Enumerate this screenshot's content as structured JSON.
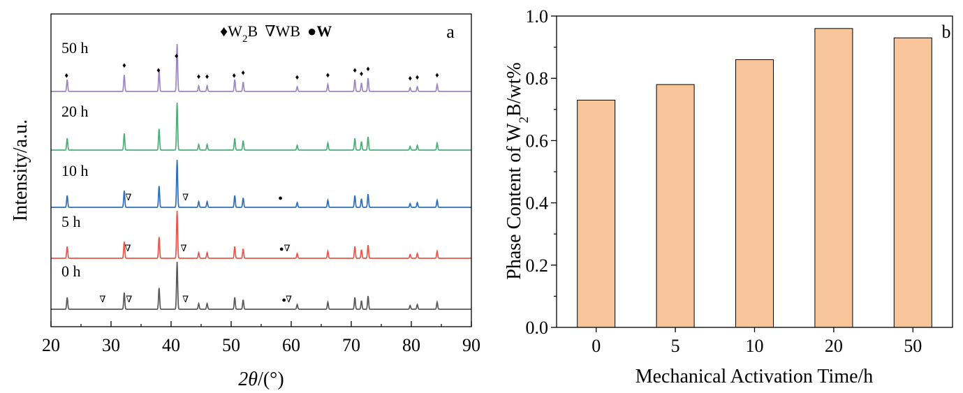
{
  "chart_data": [
    {
      "type": "line",
      "panel_label": "a",
      "xlabel_symbol": "2θ",
      "xlabel_unit": "/(°)",
      "ylabel": "Intensity/a.u.",
      "xlim": [
        20,
        90
      ],
      "xticks": [
        "20",
        "30",
        "40",
        "50",
        "60",
        "70",
        "80",
        "90"
      ],
      "legend": {
        "w2b_symbol": "♦",
        "w2b_label": "W",
        "w2b_sub": "2",
        "w2b_suffix": "B",
        "wb_symbol": "∇",
        "wb_label": "WB",
        "w_symbol": "●",
        "w_label": "W"
      },
      "series": [
        {
          "name": "0 h",
          "color": "#595959",
          "peaks": [
            [
              22.7,
              0.25
            ],
            [
              32.2,
              0.35
            ],
            [
              38.0,
              0.45
            ],
            [
              41.0,
              1.0
            ],
            [
              44.6,
              0.12
            ],
            [
              46.0,
              0.12
            ],
            [
              50.6,
              0.25
            ],
            [
              52.0,
              0.2
            ],
            [
              61.0,
              0.1
            ],
            [
              66.1,
              0.15
            ],
            [
              70.6,
              0.25
            ],
            [
              71.7,
              0.18
            ],
            [
              72.8,
              0.28
            ],
            [
              79.8,
              0.08
            ],
            [
              81.0,
              0.1
            ],
            [
              84.3,
              0.15
            ]
          ],
          "markers": [
            {
              "x": 28.6,
              "symbol": "∇"
            },
            {
              "x": 33.0,
              "symbol": "∇"
            },
            {
              "x": 42.4,
              "symbol": "∇"
            },
            {
              "x": 58.8,
              "symbol": "●"
            },
            {
              "x": 59.6,
              "symbol": "∇"
            }
          ]
        },
        {
          "name": "5 h",
          "color": "#e8574a",
          "peaks": [
            [
              22.7,
              0.25
            ],
            [
              32.2,
              0.35
            ],
            [
              38.0,
              0.45
            ],
            [
              41.0,
              1.0
            ],
            [
              44.6,
              0.12
            ],
            [
              46.0,
              0.12
            ],
            [
              50.6,
              0.25
            ],
            [
              52.0,
              0.2
            ],
            [
              61.0,
              0.1
            ],
            [
              66.1,
              0.15
            ],
            [
              70.6,
              0.25
            ],
            [
              71.7,
              0.18
            ],
            [
              72.8,
              0.28
            ],
            [
              79.8,
              0.08
            ],
            [
              81.0,
              0.1
            ],
            [
              84.3,
              0.15
            ]
          ],
          "markers": [
            {
              "x": 32.8,
              "symbol": "∇"
            },
            {
              "x": 42.1,
              "symbol": "∇"
            },
            {
              "x": 58.4,
              "symbol": "●"
            },
            {
              "x": 59.3,
              "symbol": "∇"
            }
          ]
        },
        {
          "name": "10 h",
          "color": "#2e6fba",
          "peaks": [
            [
              22.7,
              0.25
            ],
            [
              32.2,
              0.35
            ],
            [
              38.0,
              0.45
            ],
            [
              41.0,
              1.0
            ],
            [
              44.6,
              0.12
            ],
            [
              46.0,
              0.12
            ],
            [
              50.6,
              0.25
            ],
            [
              52.0,
              0.2
            ],
            [
              61.0,
              0.1
            ],
            [
              66.1,
              0.15
            ],
            [
              70.6,
              0.25
            ],
            [
              71.7,
              0.18
            ],
            [
              72.8,
              0.28
            ],
            [
              79.8,
              0.08
            ],
            [
              81.0,
              0.1
            ],
            [
              84.3,
              0.15
            ]
          ],
          "markers": [
            {
              "x": 32.9,
              "symbol": "∇"
            },
            {
              "x": 42.4,
              "symbol": "∇"
            },
            {
              "x": 58.2,
              "symbol": "●"
            }
          ]
        },
        {
          "name": "20 h",
          "color": "#4fae78",
          "peaks": [
            [
              22.7,
              0.25
            ],
            [
              32.2,
              0.35
            ],
            [
              38.0,
              0.45
            ],
            [
              41.0,
              1.0
            ],
            [
              44.6,
              0.12
            ],
            [
              46.0,
              0.12
            ],
            [
              50.6,
              0.25
            ],
            [
              52.0,
              0.2
            ],
            [
              61.0,
              0.1
            ],
            [
              66.1,
              0.15
            ],
            [
              70.6,
              0.25
            ],
            [
              71.7,
              0.18
            ],
            [
              72.8,
              0.28
            ],
            [
              79.8,
              0.08
            ],
            [
              81.0,
              0.1
            ],
            [
              84.3,
              0.15
            ]
          ],
          "markers": []
        },
        {
          "name": "50 h",
          "color": "#9b88c2",
          "peaks": [
            [
              22.7,
              0.25
            ],
            [
              32.2,
              0.35
            ],
            [
              38.0,
              0.45
            ],
            [
              41.0,
              1.0
            ],
            [
              44.6,
              0.12
            ],
            [
              46.0,
              0.12
            ],
            [
              50.6,
              0.25
            ],
            [
              52.0,
              0.2
            ],
            [
              61.0,
              0.1
            ],
            [
              66.1,
              0.15
            ],
            [
              70.6,
              0.25
            ],
            [
              71.7,
              0.18
            ],
            [
              72.8,
              0.28
            ],
            [
              79.8,
              0.08
            ],
            [
              81.0,
              0.1
            ],
            [
              84.3,
              0.15
            ]
          ],
          "markers": [
            {
              "x": 22.6,
              "symbol": "♦"
            },
            {
              "x": 32.2,
              "symbol": "♦"
            },
            {
              "x": 37.9,
              "symbol": "♦"
            },
            {
              "x": 40.9,
              "symbol": "♦"
            },
            {
              "x": 44.6,
              "symbol": "♦"
            },
            {
              "x": 46.0,
              "symbol": "♦"
            },
            {
              "x": 50.5,
              "symbol": "♦"
            },
            {
              "x": 52.0,
              "symbol": "♦"
            },
            {
              "x": 61.0,
              "symbol": "♦"
            },
            {
              "x": 66.1,
              "symbol": "♦"
            },
            {
              "x": 70.6,
              "symbol": "♦"
            },
            {
              "x": 71.7,
              "symbol": "♦"
            },
            {
              "x": 72.8,
              "symbol": "♦"
            },
            {
              "x": 79.8,
              "symbol": "♦"
            },
            {
              "x": 81.0,
              "symbol": "♦"
            },
            {
              "x": 84.3,
              "symbol": "♦"
            }
          ]
        }
      ]
    },
    {
      "type": "bar",
      "panel_label": "b",
      "categories": [
        "0",
        "5",
        "10",
        "20",
        "50"
      ],
      "values": [
        0.73,
        0.78,
        0.86,
        0.96,
        0.93
      ],
      "xlabel": "Mechanical Activation Time/h",
      "ylabel_prefix": "Phase Content of W",
      "ylabel_sub": "2",
      "ylabel_suffix": "B/wt%",
      "ylim": [
        0.0,
        1.0
      ],
      "yticks": [
        "0.0",
        "0.2",
        "0.4",
        "0.6",
        "0.8",
        "1.0"
      ],
      "bar_color": "#f8c59b",
      "bar_edge_color": "#000000"
    }
  ]
}
